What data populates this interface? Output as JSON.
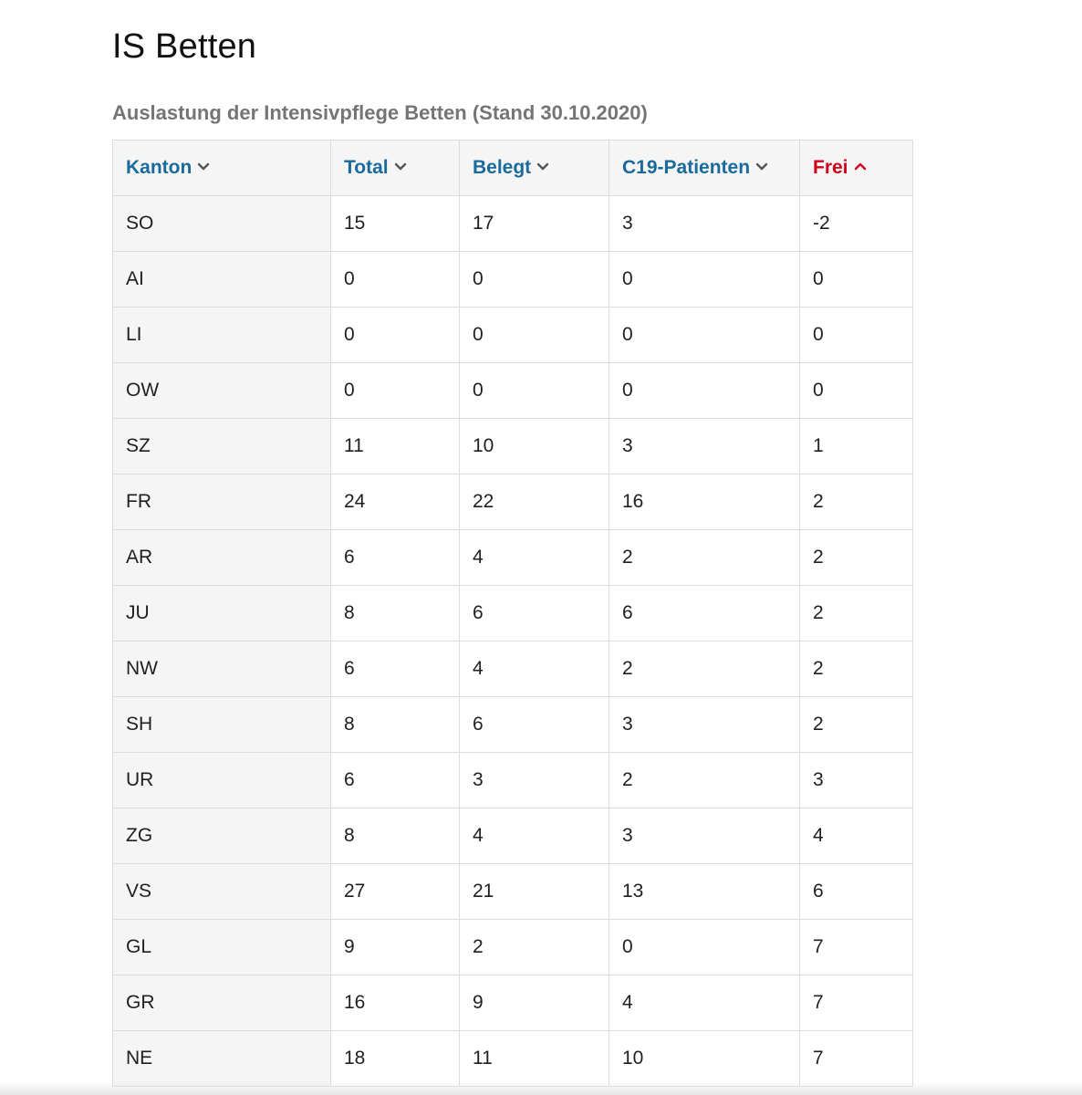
{
  "page": {
    "title": "IS Betten",
    "caption": "Auslastung der Intensivpflege Betten (Stand 30.10.2020)"
  },
  "colors": {
    "header_link": "#1a6a9c",
    "active_sort": "#d0021b",
    "caption": "#757575"
  },
  "table": {
    "columns": [
      {
        "label": "Kanton",
        "sort": "none",
        "icon": "chevron-down-icon"
      },
      {
        "label": "Total",
        "sort": "none",
        "icon": "chevron-down-icon"
      },
      {
        "label": "Belegt",
        "sort": "none",
        "icon": "chevron-down-icon"
      },
      {
        "label": "C19-Patienten",
        "sort": "none",
        "icon": "chevron-down-icon"
      },
      {
        "label": "Frei",
        "sort": "ascending",
        "icon": "chevron-up-icon"
      }
    ],
    "rows": [
      [
        "SO",
        "15",
        "17",
        "3",
        "-2"
      ],
      [
        "AI",
        "0",
        "0",
        "0",
        "0"
      ],
      [
        "LI",
        "0",
        "0",
        "0",
        "0"
      ],
      [
        "OW",
        "0",
        "0",
        "0",
        "0"
      ],
      [
        "SZ",
        "11",
        "10",
        "3",
        "1"
      ],
      [
        "FR",
        "24",
        "22",
        "16",
        "2"
      ],
      [
        "AR",
        "6",
        "4",
        "2",
        "2"
      ],
      [
        "JU",
        "8",
        "6",
        "6",
        "2"
      ],
      [
        "NW",
        "6",
        "4",
        "2",
        "2"
      ],
      [
        "SH",
        "8",
        "6",
        "3",
        "2"
      ],
      [
        "UR",
        "6",
        "3",
        "2",
        "3"
      ],
      [
        "ZG",
        "8",
        "4",
        "3",
        "4"
      ],
      [
        "VS",
        "27",
        "21",
        "13",
        "6"
      ],
      [
        "GL",
        "9",
        "2",
        "0",
        "7"
      ],
      [
        "GR",
        "16",
        "9",
        "4",
        "7"
      ],
      [
        "NE",
        "18",
        "11",
        "10",
        "7"
      ]
    ]
  }
}
